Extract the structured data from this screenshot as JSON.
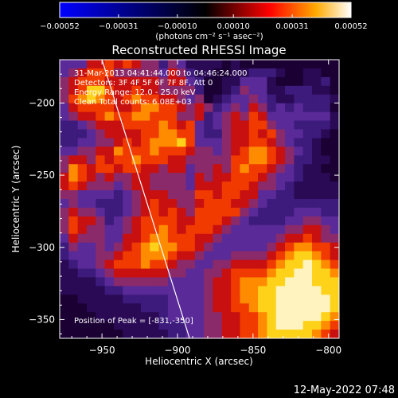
{
  "chart_data": {
    "type": "heatmap",
    "title": "Reconstructed RHESSI Image",
    "xlabel": "Heliocentric X (arcsec)",
    "ylabel": "Heliocentric Y (arcsec)",
    "xlim": [
      -978,
      -793
    ],
    "ylim": [
      -363,
      -170
    ],
    "x_ticks": [
      -950,
      -900,
      -850,
      -800
    ],
    "y_ticks": [
      -200,
      -250,
      -300,
      -350
    ],
    "x_tick_labels": [
      "−950",
      "−900",
      "−850",
      "−800"
    ],
    "y_tick_labels": [
      "−200",
      "−250",
      "−300",
      "−350"
    ],
    "annotations": [
      "31-Mar-2013 04:41:44.000 to 04:46:24.000",
      "Detectors: 3F 4F 5F 6F 7F 8F, Att 0",
      "Energy Range: 12.0 - 25.0 keV",
      "Clean     Total counts: 6.08E+03"
    ],
    "peak_label": "Position of Peak = [-831,-350]",
    "peak_position": [
      -831,
      -350
    ],
    "colorbar": {
      "label": "(photons cm⁻² s⁻¹ asec⁻²)",
      "range": [
        -0.00052,
        0.00052
      ],
      "upper_tick_labels": [
        "−0.00052",
        "−0.00031",
        "−0.00010",
        "0.00010",
        "0.00031",
        "0.00052"
      ],
      "colors": [
        "#0000ff",
        "#000000",
        "#ff0000",
        "#ffaa00",
        "#ffffff"
      ]
    },
    "limb_line": {
      "from": [
        -950,
        -170
      ],
      "to": [
        -892,
        -363
      ]
    },
    "grid": [
      "3335565654424311110100000000000",
      "3456664444435421100112221001100",
      "4566655555545532001133310001120",
      "4568865565544442001243311222110",
      "4678765676655434012334321122221",
      "3566665567766545423435423232220",
      "3455676677666445234546533333331",
      "2234555666676563234556643322221",
      "2223455556677663224556564332210",
      "2233445656777863334556654322100",
      "3344557666766654434567765432100",
      "4554656676665544444667765422110",
      "4765665665545534454676654321100",
      "5765454455444435455666543321110",
      "5654443455444435556665443211111",
      "4433332345554446656655332211111",
      "3433222345655445666554322222222",
      "4544322345656546666643222233322",
      "4655423456666556665432222334433",
      "4654433456676566654333333445543",
      "3544433556776665543333334556544",
      "2433434567877665433333345677665",
      "2333445667776554333444456788765",
      "1233456667665443344555567889876",
      "1122345555554433445666678899887",
      "1111234444443333455677788999888",
      "1111122333333333455677889999988",
      "0011111222223333455677889999998",
      "0001111112223333455667889999998",
      "0000111111123333445566789999987",
      "0000001111122233445566789998876",
      "0000000111112233445566788888765"
    ]
  },
  "footer": {
    "timestamp": "12-May-2022 07:48"
  }
}
